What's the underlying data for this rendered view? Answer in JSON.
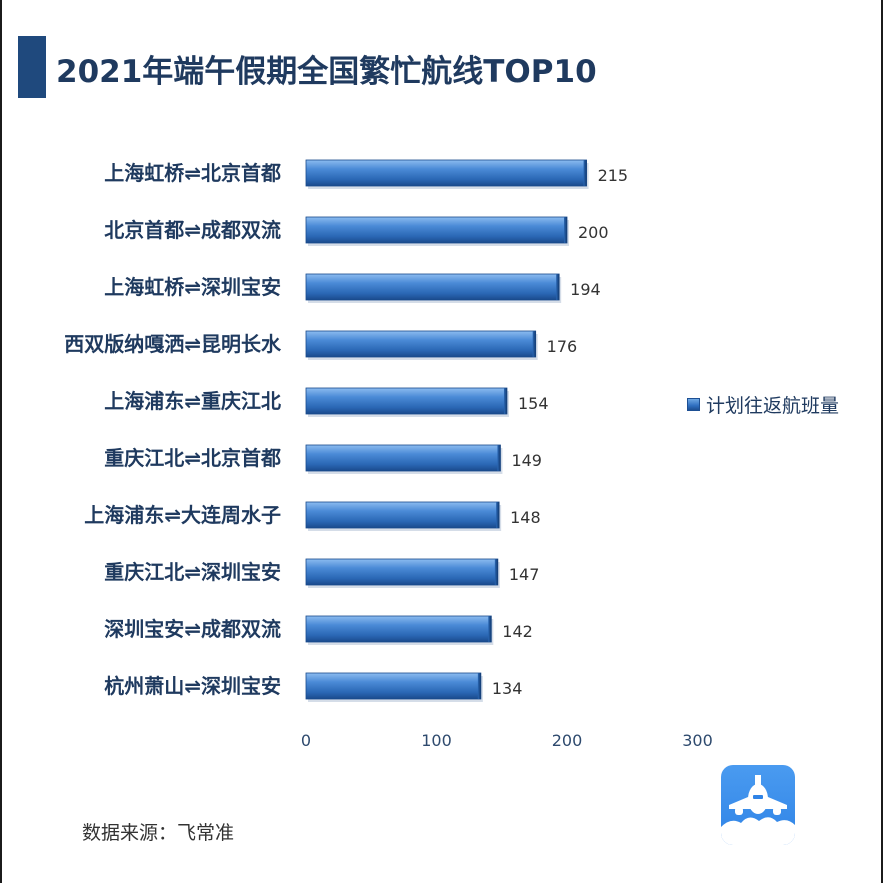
{
  "title": "2021年端午假期全国繁忙航线TOP10",
  "legend": {
    "label": "计划往返航班量"
  },
  "source": "数据来源：飞常准",
  "colors": {
    "bar_light": "#6fa8e4",
    "bar_mid": "#2f6fc0",
    "bar_dark": "#1d4f93",
    "title": "#1f3a5f",
    "logo": "#2f83e6"
  },
  "logo_icon": "airplane-icon",
  "chart_data": {
    "type": "bar",
    "orientation": "horizontal",
    "categories": [
      "上海虹桥⇌北京首都",
      "北京首都⇌成都双流",
      "上海虹桥⇌深圳宝安",
      "西双版纳嘎洒⇌昆明长水",
      "上海浦东⇌重庆江北",
      "重庆江北⇌北京首都",
      "上海浦东⇌大连周水子",
      "重庆江北⇌深圳宝安",
      "深圳宝安⇌成都双流",
      "杭州萧山⇌深圳宝安"
    ],
    "series": [
      {
        "name": "计划往返航班量",
        "values": [
          215,
          200,
          194,
          176,
          154,
          149,
          148,
          147,
          142,
          134
        ]
      }
    ],
    "xlim": [
      0,
      300
    ],
    "xticks": [
      0,
      100,
      200,
      300
    ],
    "grid": false,
    "legend_position": "right"
  }
}
